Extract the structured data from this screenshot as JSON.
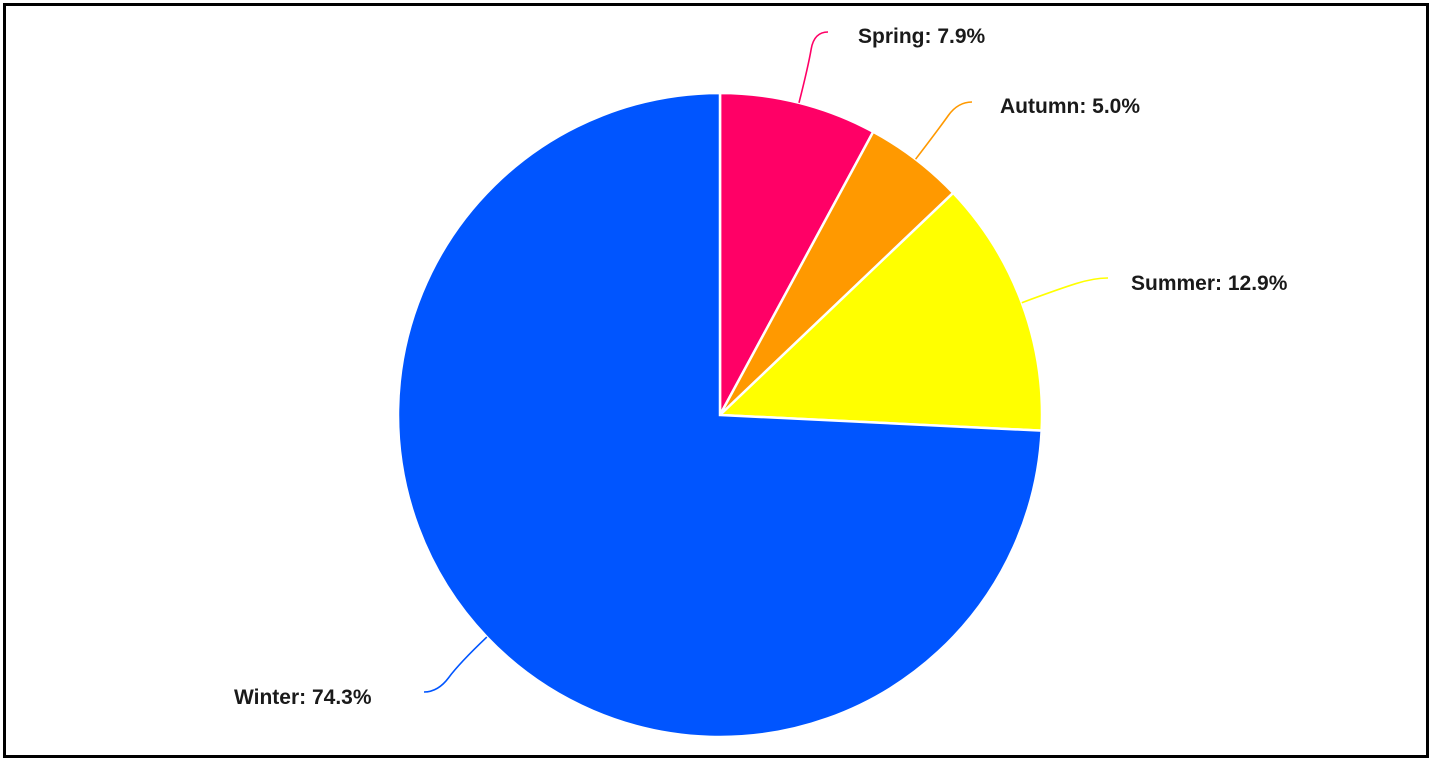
{
  "chart_data": {
    "type": "pie",
    "slices": [
      {
        "label": "Spring",
        "value": 7.9,
        "color": "#ff0066",
        "text": "Spring: 7.9%"
      },
      {
        "label": "Autumn",
        "value": 5.0,
        "color": "#ff9900",
        "text": "Autumn: 5.0%"
      },
      {
        "label": "Summer",
        "value": 12.9,
        "color": "#ffff00",
        "text": "Summer: 12.9%"
      },
      {
        "label": "Winter",
        "value": 74.3,
        "color": "#0055ff",
        "text": "Winter: 74.3%"
      }
    ],
    "start_angle": "12 o'clock",
    "direction": "clockwise",
    "legend": "none",
    "labels": "outside with leader lines"
  }
}
